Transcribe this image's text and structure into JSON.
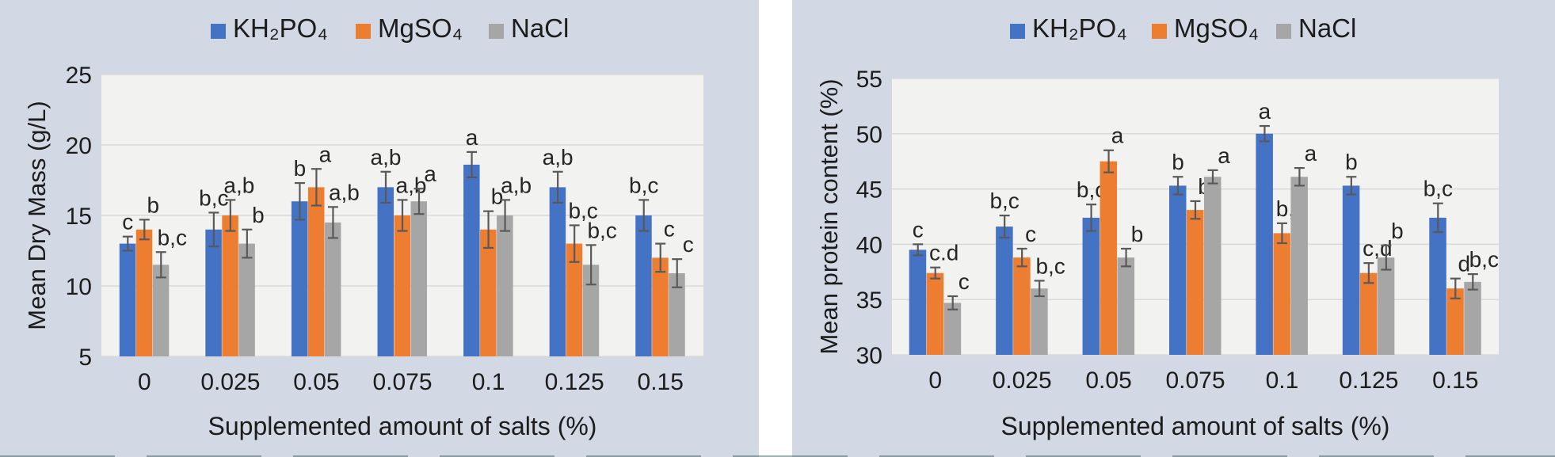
{
  "style": {
    "panel_bg": "#d2d8e4",
    "divider_bg": "#ffffff",
    "plot_bg": "#f2f2f0",
    "gridline_color": "#d9d9d9",
    "error_bar_color": "#595959",
    "text_color": "#1c1c1c",
    "letter_color": "#262626",
    "series_colors": {
      "KH2PO4": "#4472C4",
      "MgSO4": "#ED7D31",
      "NaCl": "#A6A6A6"
    }
  },
  "chart_data": [
    {
      "type": "bar",
      "title": "",
      "xlabel": "Supplemented amount of salts (%)",
      "ylabel": "Mean Dry Mass (g/L)",
      "ylim": [
        5,
        25
      ],
      "yticks": [
        25,
        20,
        15,
        10,
        5
      ],
      "grid": true,
      "legend_position": "top",
      "categories": [
        "0",
        "0.025",
        "0.05",
        "0.075",
        "0.1",
        "0.125",
        "0.15"
      ],
      "series": [
        {
          "name": "KH₂PO₄",
          "color": "#4472C4",
          "values": [
            13.0,
            14.0,
            16.0,
            17.0,
            18.6,
            17.0,
            15.0
          ],
          "errors": [
            0.5,
            1.2,
            1.3,
            1.1,
            0.9,
            1.1,
            1.1
          ],
          "sig_letters": [
            "c",
            "b,c",
            "b",
            "a,b",
            "a",
            "a,b",
            "b,c"
          ]
        },
        {
          "name": "MgSO₄",
          "color": "#ED7D31",
          "values": [
            14.0,
            15.0,
            17.0,
            15.0,
            14.0,
            13.0,
            12.0
          ],
          "errors": [
            0.7,
            1.1,
            1.3,
            1.1,
            1.3,
            1.3,
            1.0
          ],
          "sig_letters": [
            "b",
            "a,b",
            "a",
            "a,b",
            "b",
            "b,c",
            "c"
          ]
        },
        {
          "name": "NaCl",
          "color": "#A6A6A6",
          "values": [
            11.5,
            13.0,
            14.5,
            16.0,
            15.0,
            11.5,
            10.9
          ],
          "errors": [
            0.9,
            1.0,
            1.1,
            0.9,
            1.1,
            1.4,
            1.0
          ],
          "sig_letters": [
            "b,c",
            "b",
            "a,b",
            "a",
            "a,b",
            "b,c",
            "c"
          ]
        }
      ]
    },
    {
      "type": "bar",
      "title": "",
      "xlabel": "Supplemented amount of salts (%)",
      "ylabel": "Mean protein content (%)",
      "ylim": [
        30,
        55
      ],
      "yticks": [
        55,
        50,
        45,
        40,
        35,
        30
      ],
      "grid": true,
      "legend_position": "top",
      "categories": [
        "0",
        "0.025",
        "0.05",
        "0.075",
        "0.1",
        "0.125",
        "0.15"
      ],
      "series": [
        {
          "name": "KH₂PO₄",
          "color": "#4472C4",
          "values": [
            39.5,
            41.6,
            42.4,
            45.3,
            50.0,
            45.3,
            42.4
          ],
          "errors": [
            0.5,
            1.0,
            1.2,
            0.8,
            0.7,
            0.8,
            1.3
          ],
          "sig_letters": [
            "c",
            "b,c",
            "b,c",
            "b",
            "a",
            "b",
            "b,c"
          ]
        },
        {
          "name": "MgSO₄",
          "color": "#ED7D31",
          "values": [
            37.4,
            38.8,
            47.5,
            43.1,
            41.0,
            37.4,
            36.0
          ],
          "errors": [
            0.5,
            0.8,
            1.0,
            0.8,
            0.9,
            0.9,
            0.9
          ],
          "sig_letters": [
            "c.d",
            "c",
            "a",
            "b",
            "b,c",
            "c,d",
            "d"
          ]
        },
        {
          "name": "NaCl",
          "color": "#A6A6A6",
          "values": [
            34.7,
            36.0,
            38.8,
            46.1,
            46.1,
            38.8,
            36.6
          ],
          "errors": [
            0.6,
            0.7,
            0.8,
            0.6,
            0.8,
            1.1,
            0.7
          ],
          "sig_letters": [
            "c",
            "b,c",
            "b",
            "a",
            "a",
            "b",
            "b,c"
          ]
        }
      ]
    }
  ]
}
